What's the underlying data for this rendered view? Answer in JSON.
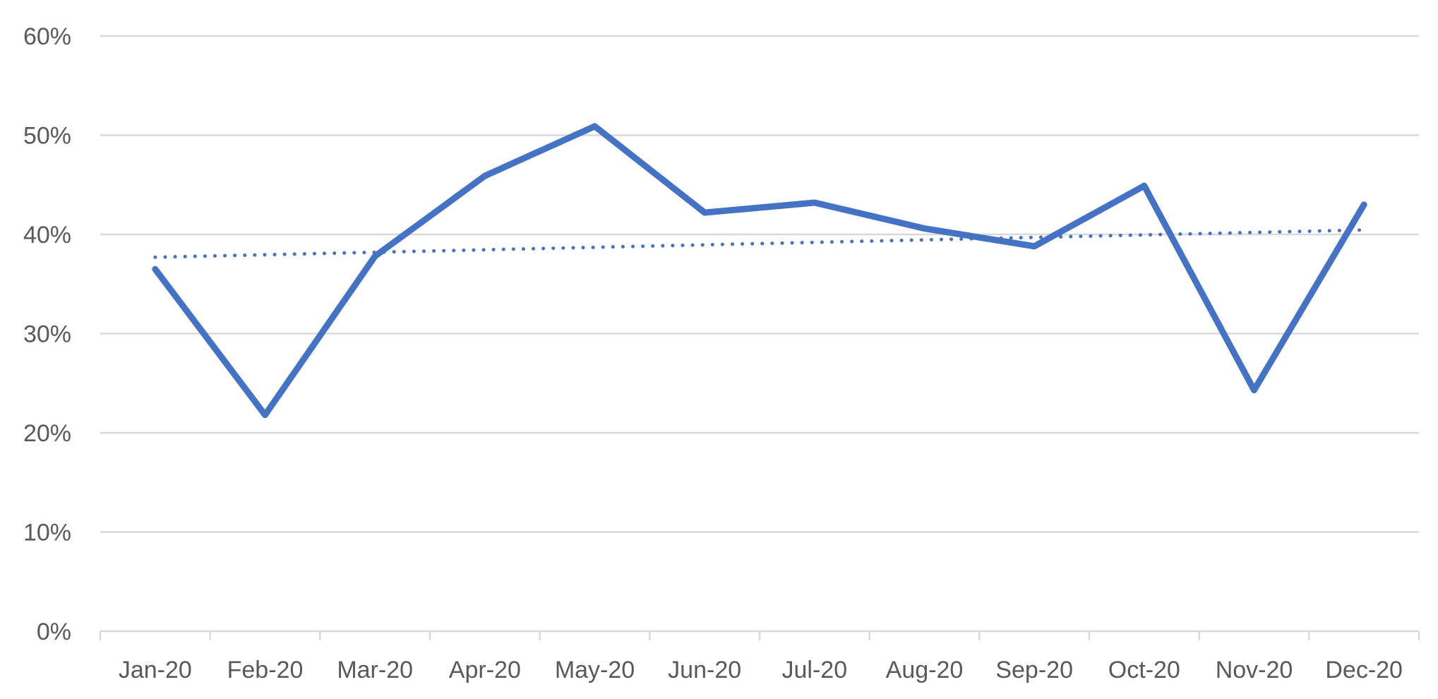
{
  "chart_data": {
    "type": "line",
    "title": "",
    "xlabel": "",
    "ylabel": "",
    "categories": [
      "Jan-20",
      "Feb-20",
      "Mar-20",
      "Apr-20",
      "May-20",
      "Jun-20",
      "Jul-20",
      "Aug-20",
      "Sep-20",
      "Oct-20",
      "Nov-20",
      "Dec-20"
    ],
    "y_ticks": [
      "0%",
      "10%",
      "20%",
      "30%",
      "40%",
      "50%",
      "60%"
    ],
    "ylim": [
      0,
      60
    ],
    "grid": true,
    "legend": "none",
    "series": [
      {
        "values": [
          36.5,
          21.8,
          37.8,
          45.9,
          50.9,
          42.2,
          43.2,
          40.6,
          38.8,
          44.9,
          24.3,
          43.0
        ],
        "color": "#4472C4",
        "style": "solid"
      },
      {
        "values": [
          37.7,
          37.95,
          38.2,
          38.45,
          38.7,
          38.95,
          39.2,
          39.45,
          39.7,
          39.95,
          40.2,
          40.45
        ],
        "color": "#4472C4",
        "style": "dotted",
        "role": "trendline"
      }
    ],
    "colors": {
      "grid": "#D9D9D9",
      "axis": "#D9D9D9",
      "text": "#595959"
    }
  }
}
